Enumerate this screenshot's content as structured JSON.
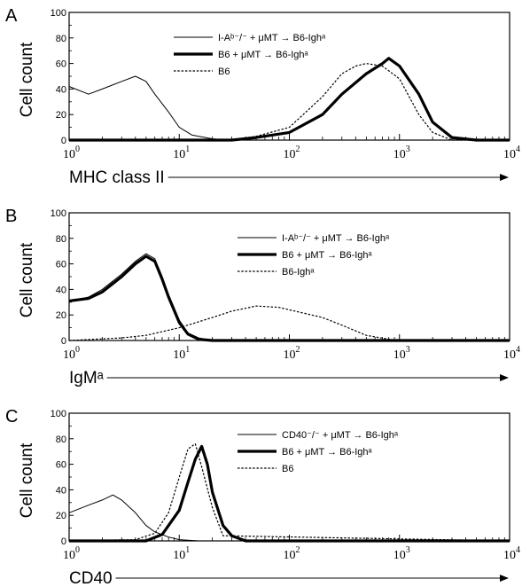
{
  "chart_data": [
    {
      "type": "histogram",
      "panel_label": "A",
      "xlabel": "MHC class II",
      "ylabel": "Cell count",
      "xscale": "log",
      "xlim": [
        1,
        10000
      ],
      "ylim": [
        0,
        100
      ],
      "yticks": [
        0,
        20,
        40,
        60,
        80,
        100
      ],
      "xticks": [
        {
          "base": "10",
          "exp": "0"
        },
        {
          "base": "10",
          "exp": "1"
        },
        {
          "base": "10",
          "exp": "2"
        },
        {
          "base": "10",
          "exp": "3"
        },
        {
          "base": "10",
          "exp": "4"
        }
      ],
      "legend_position": "top-center",
      "series": [
        {
          "name": "I-Aᵇ⁻/⁻ + μMT → B6-Ighᵃ",
          "style": "thin",
          "x": [
            1,
            1.5,
            2,
            3,
            4,
            5,
            6,
            8,
            10,
            13,
            20,
            30,
            50,
            100,
            200,
            500,
            1000,
            2000,
            3000,
            5000,
            10000
          ],
          "y": [
            42,
            36,
            40,
            46,
            50,
            46,
            36,
            22,
            10,
            4,
            1,
            0,
            0,
            0,
            0,
            0,
            0,
            0,
            0,
            0,
            0
          ]
        },
        {
          "name": "B6 + μMT → B6-Ighᵃ",
          "style": "thick",
          "x": [
            1,
            10,
            30,
            50,
            100,
            200,
            300,
            500,
            700,
            800,
            1000,
            1500,
            2000,
            3000,
            5000,
            10000
          ],
          "y": [
            0,
            0,
            0,
            2,
            6,
            20,
            36,
            52,
            60,
            64,
            58,
            36,
            14,
            2,
            0,
            0
          ]
        },
        {
          "name": "B6",
          "style": "dashed",
          "x": [
            1,
            10,
            30,
            50,
            100,
            200,
            300,
            400,
            500,
            700,
            1000,
            1500,
            2000,
            3000,
            10000
          ],
          "y": [
            0,
            0,
            0,
            3,
            10,
            34,
            52,
            58,
            60,
            58,
            48,
            20,
            6,
            0,
            0
          ]
        }
      ]
    },
    {
      "type": "histogram",
      "panel_label": "B",
      "xlabel": "IgMᵃ",
      "ylabel": "Cell count",
      "xscale": "log",
      "xlim": [
        1,
        10000
      ],
      "ylim": [
        0,
        100
      ],
      "yticks": [
        0,
        20,
        40,
        60,
        80,
        100
      ],
      "xticks": [
        {
          "base": "10",
          "exp": "0"
        },
        {
          "base": "10",
          "exp": "1"
        },
        {
          "base": "10",
          "exp": "2"
        },
        {
          "base": "10",
          "exp": "3"
        },
        {
          "base": "10",
          "exp": "4"
        }
      ],
      "legend_position": "top-right",
      "series": [
        {
          "name": "I-Aᵇ⁻/⁻ + μMT → B6-Ighᵃ",
          "style": "thin",
          "x": [
            1,
            1.5,
            2,
            3,
            4,
            5,
            6,
            7,
            8,
            10,
            12,
            15,
            20,
            30,
            10000
          ],
          "y": [
            30,
            34,
            40,
            52,
            62,
            68,
            64,
            50,
            36,
            16,
            6,
            2,
            0,
            0,
            0
          ]
        },
        {
          "name": "B6 + μMT → B6-Ighᵃ",
          "style": "thick",
          "x": [
            1,
            1.5,
            2,
            3,
            4,
            5,
            6,
            7,
            8,
            10,
            12,
            15,
            20,
            30,
            10000
          ],
          "y": [
            31,
            33,
            38,
            50,
            60,
            66,
            62,
            48,
            34,
            14,
            5,
            1,
            0,
            0,
            0
          ]
        },
        {
          "name": "B6-Ighᵃ",
          "style": "dashed",
          "x": [
            1,
            3,
            5,
            10,
            20,
            30,
            50,
            80,
            100,
            200,
            300,
            500,
            800,
            1000,
            10000
          ],
          "y": [
            0,
            2,
            4,
            10,
            18,
            23,
            27,
            26,
            24,
            18,
            12,
            4,
            1,
            0,
            0
          ]
        }
      ]
    },
    {
      "type": "histogram",
      "panel_label": "C",
      "xlabel": "CD40",
      "ylabel": "Cell count",
      "xscale": "log",
      "xlim": [
        1,
        10000
      ],
      "ylim": [
        0,
        100
      ],
      "yticks": [
        0,
        20,
        40,
        60,
        80,
        100
      ],
      "xticks": [
        {
          "base": "10",
          "exp": "0"
        },
        {
          "base": "10",
          "exp": "1"
        },
        {
          "base": "10",
          "exp": "2"
        },
        {
          "base": "10",
          "exp": "3"
        },
        {
          "base": "10",
          "exp": "4"
        }
      ],
      "legend_position": "top-right",
      "series": [
        {
          "name": "CD40⁻/⁻ + μMT → B6-Ighᵃ",
          "style": "thin",
          "x": [
            1,
            1.5,
            2,
            2.5,
            3,
            4,
            5,
            6,
            8,
            10,
            15,
            20,
            10000
          ],
          "y": [
            22,
            28,
            32,
            36,
            32,
            22,
            12,
            7,
            3,
            1,
            0,
            0,
            0
          ]
        },
        {
          "name": "B6 + μMT → B6-Ighᵃ",
          "style": "thick",
          "x": [
            1,
            5,
            7,
            10,
            12,
            14,
            16,
            18,
            20,
            25,
            30,
            40,
            10000
          ],
          "y": [
            0,
            0,
            5,
            24,
            46,
            64,
            74,
            60,
            38,
            12,
            4,
            0,
            0
          ]
        },
        {
          "name": "B6",
          "style": "dashed",
          "x": [
            1,
            4,
            6,
            8,
            10,
            12,
            14,
            16,
            20,
            25,
            10000
          ],
          "y": [
            0,
            1,
            6,
            22,
            50,
            72,
            76,
            58,
            26,
            4,
            0
          ]
        }
      ]
    }
  ]
}
